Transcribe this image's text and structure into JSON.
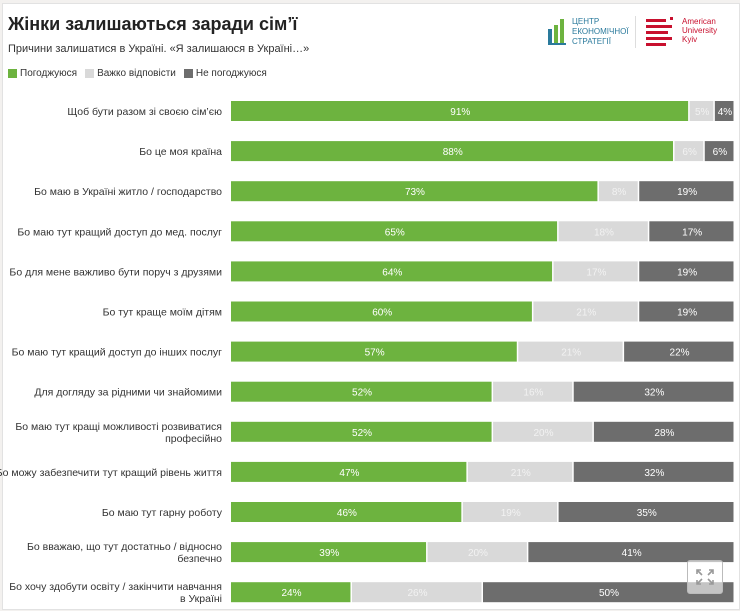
{
  "header": {
    "title": "Жінки залишаються заради сім’ї",
    "subtitle": "Причини залишатися в Україні. «Я залишаюся в Україні…»",
    "logo_left": [
      "ЦЕНТР",
      "ЕКОНОМІЧНОЇ",
      "СТРАТЕГІЇ"
    ],
    "logo_right": [
      "American",
      "University",
      "Kyiv"
    ]
  },
  "chart_data": {
    "type": "bar",
    "orientation": "horizontal",
    "stacked": true,
    "legend_position": "top-left",
    "grid": false,
    "xlim": [
      0,
      100
    ],
    "categories": [
      "Щоб бути разом зі своєю сім’єю",
      "Бо це моя країна",
      "Бо маю в Україні житло / господарство",
      "Бо маю тут кращий доступ до мед. послуг",
      "Бо для мене важливо бути поруч з друзями",
      "Бо тут краще моїм дітям",
      "Бо маю тут кращий доступ до інших послуг",
      "Для догляду за рідними чи знайомими",
      "Бо маю тут кращі можливості розвиватися професійно",
      "Бо можу забезпечити тут кращий рівень життя",
      "Бо маю тут гарну роботу",
      "Бо вважаю, що тут достатньо / відносно безпечно",
      "Бо хочу здобути освіту / закінчити навчання в Україні"
    ],
    "series": [
      {
        "name": "Погоджуюся",
        "color": "#6db33f",
        "values": [
          91,
          88,
          73,
          65,
          64,
          60,
          57,
          52,
          52,
          47,
          46,
          39,
          24
        ]
      },
      {
        "name": "Важко відповісти",
        "color": "#d9d9d9",
        "values": [
          5,
          6,
          8,
          18,
          17,
          21,
          21,
          16,
          20,
          21,
          19,
          20,
          26
        ]
      },
      {
        "name": "Не погоджуюся",
        "color": "#6d6d6d",
        "values": [
          4,
          6,
          19,
          17,
          19,
          19,
          22,
          32,
          28,
          32,
          35,
          41,
          50
        ]
      }
    ],
    "value_format": "%"
  }
}
